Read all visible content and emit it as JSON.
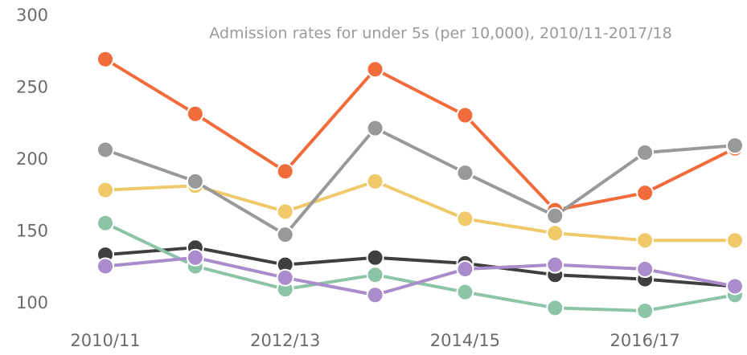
{
  "chart_data": {
    "type": "line",
    "title": "Admission rates for under 5s (per 10,000), 2010/11-2017/18",
    "categories": [
      "2010/11",
      null,
      "2012/13",
      null,
      "2014/15",
      null,
      "2016/17",
      null
    ],
    "series": [
      {
        "color": "#f0c96a",
        "values": [
          179,
          182,
          164,
          185,
          159,
          149,
          144,
          144
        ]
      },
      {
        "color": "#3f3f3f",
        "values": [
          134,
          139,
          127,
          132,
          128,
          120,
          117,
          112
        ]
      },
      {
        "color": "#8cc4a8",
        "values": [
          156,
          126,
          110,
          120,
          108,
          97,
          95,
          106
        ]
      },
      {
        "color": "#a98ccb",
        "values": [
          126,
          132,
          118,
          106,
          124,
          127,
          124,
          112
        ]
      },
      {
        "color": "#f26b3a",
        "values": [
          270,
          232,
          192,
          263,
          231,
          165,
          177,
          208
        ]
      },
      {
        "color": "#999999",
        "values": [
          207,
          185,
          148,
          222,
          191,
          161,
          205,
          210
        ]
      }
    ],
    "ylim": [
      100,
      300
    ],
    "yticks": [
      100,
      150,
      200,
      250,
      300
    ]
  }
}
